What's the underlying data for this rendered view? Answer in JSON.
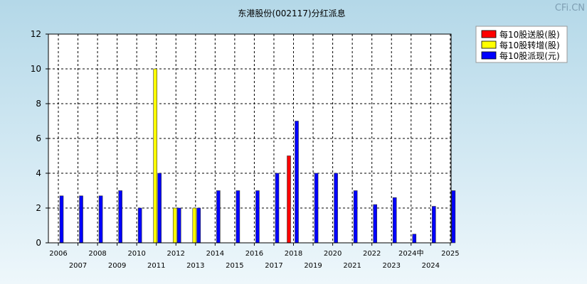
{
  "watermark": "CFi.CN",
  "chart_data": {
    "type": "bar",
    "title": "东港股份(002117)分红派息",
    "xlabel": "",
    "ylabel": "",
    "ylim": [
      0,
      12
    ],
    "yticks": [
      0,
      2,
      4,
      6,
      8,
      10,
      12
    ],
    "grid": true,
    "legend_position": "top-right",
    "categories": [
      "2006",
      "2007",
      "2008",
      "2009",
      "2010",
      "2011",
      "2012",
      "2013",
      "2014",
      "2015",
      "2016",
      "2017",
      "2018",
      "2019",
      "2020",
      "2021",
      "2022",
      "2023",
      "2024中",
      "2024",
      "2025"
    ],
    "series": [
      {
        "name": "每10股送股(股)",
        "color": "#ff0000",
        "values": [
          0,
          0,
          0,
          0,
          0,
          0,
          0,
          0,
          0,
          0,
          0,
          0,
          5,
          0,
          0,
          0,
          0,
          0,
          0,
          0,
          0
        ]
      },
      {
        "name": "每10股转增(股)",
        "color": "#ffff00",
        "values": [
          0,
          0,
          0,
          0,
          0,
          10,
          2,
          2,
          0,
          0,
          0,
          0,
          0,
          0,
          0,
          0,
          0,
          0,
          0,
          0,
          0
        ]
      },
      {
        "name": "每10股派现(元)",
        "color": "#0000ff",
        "values": [
          2.7,
          2.7,
          2.7,
          3,
          2,
          4,
          2,
          2,
          3,
          3,
          3,
          4,
          7,
          4,
          4,
          3,
          2.2,
          2.6,
          0.5,
          2.1,
          3
        ]
      }
    ]
  }
}
